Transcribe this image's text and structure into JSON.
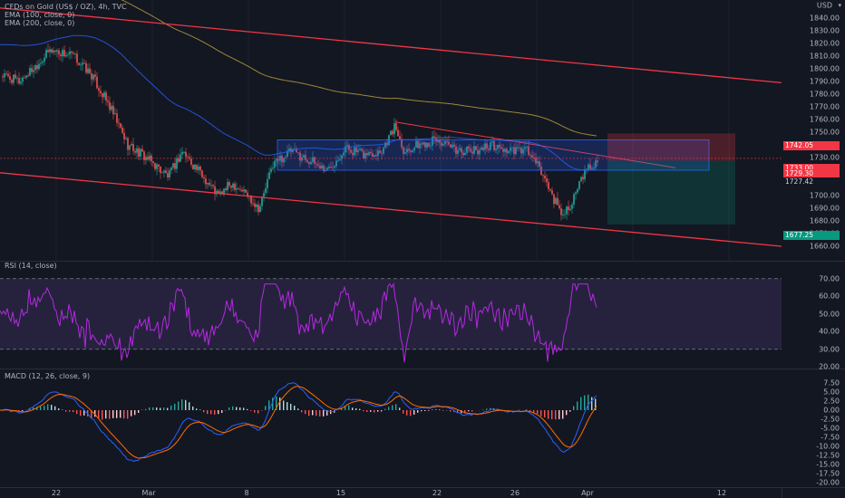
{
  "legend": {
    "main": "CFDs on Gold (US$ / OZ), 4h, TVC",
    "ema100": "EMA (100, close, 0)",
    "ema200": "EMA (200, close, 0)",
    "rsi": "RSI (14, close)",
    "macd": "MACD (12, 26, close, 9)"
  },
  "axis": {
    "currency": "USD",
    "price_ticks": [
      "1840.00",
      "1830.00",
      "1820.00",
      "1810.00",
      "1800.00",
      "1790.00",
      "1780.00",
      "1770.00",
      "1760.00",
      "1750.00",
      "1740.00",
      "1730.00",
      "1720.00",
      "1710.00",
      "1700.00",
      "1690.00",
      "1680.00",
      "1670.00",
      "1660.00"
    ],
    "price_tags": [
      {
        "label": "1742.05",
        "color": "#f23645"
      },
      {
        "label": "1733.00",
        "color": "#f23645"
      },
      {
        "label": "1729.30",
        "color": "#f23645"
      },
      {
        "label": "1727.42",
        "color": "#131722"
      },
      {
        "label": "1677.25",
        "color": "#089981"
      }
    ],
    "rsi_ticks": [
      "70.00",
      "60.00",
      "50.00",
      "40.00",
      "30.00",
      "20.00"
    ],
    "macd_ticks": [
      "7.50",
      "5.00",
      "2.50",
      "0.00",
      "-2.50",
      "-5.00",
      "-7.50",
      "-10.00",
      "-12.50",
      "-15.00",
      "-17.50",
      "-20.00"
    ],
    "time_labels": [
      "22",
      "Mar",
      "8",
      "15",
      "22",
      "26",
      "Apr",
      "12"
    ]
  },
  "colors": {
    "bg": "#131722",
    "up": "#26a69a",
    "down": "#ef5350",
    "ema100": "#2962ff",
    "ema200": "#c0a53c",
    "channel": "#f23645",
    "rsi": "#b429e0",
    "macd": "#2962ff",
    "signal": "#ff6d00"
  },
  "chart_data": [
    {
      "type": "candlestick",
      "title": "CFDs on Gold (US$ / OZ), 4h, TVC",
      "ylim": [
        1660,
        1850
      ],
      "series": [
        {
          "name": "EMA (100, close, 0)"
        },
        {
          "name": "EMA (200, close, 0)"
        }
      ],
      "last_price": 1729.3,
      "levels": {
        "stop": 1742.05,
        "target": 1677.25,
        "entry": 1727.42
      },
      "x_labels": [
        "22",
        "Mar",
        "8",
        "15",
        "22",
        "26",
        "Apr",
        "12"
      ]
    },
    {
      "type": "line",
      "title": "RSI (14, close)",
      "ylim": [
        15,
        75
      ],
      "bands": [
        30,
        70
      ]
    },
    {
      "type": "bar",
      "title": "MACD (12, 26, close, 9)",
      "ylim": [
        -21,
        8
      ]
    }
  ]
}
